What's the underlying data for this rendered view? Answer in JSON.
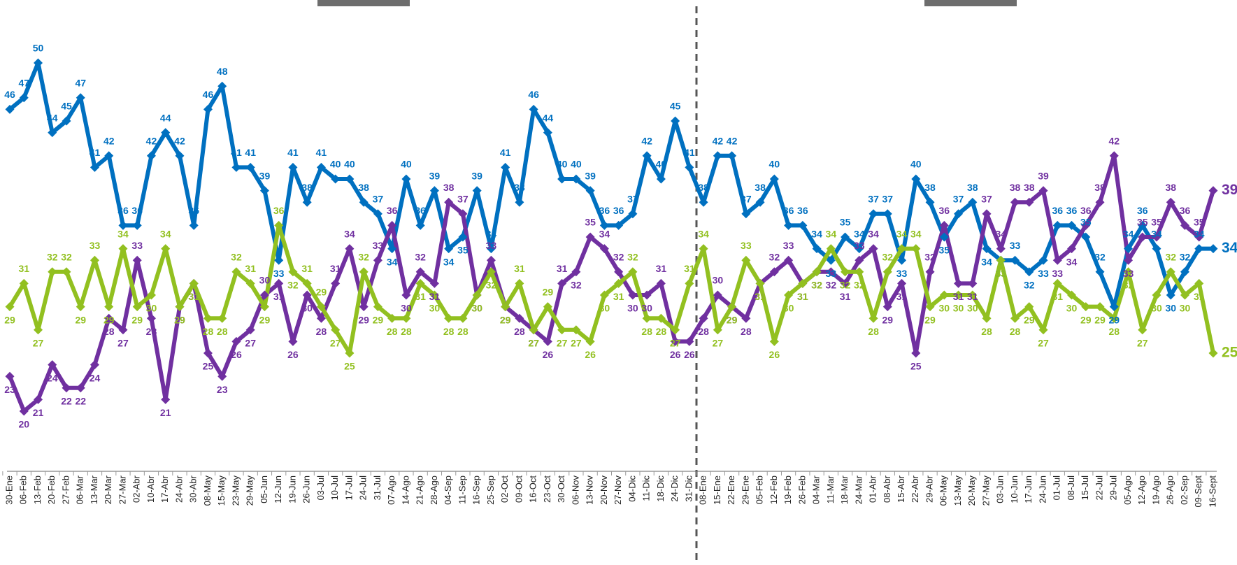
{
  "chart_data": {
    "type": "line",
    "categories": [
      "30-Ene",
      "06-Feb",
      "13-Feb",
      "20-Feb",
      "27-Feb",
      "06-Mar",
      "13-Mar",
      "20-Mar",
      "27-Mar",
      "02-Abr",
      "10-Abr",
      "17-Abr",
      "24-Abr",
      "30-Abr",
      "08-May",
      "15-May",
      "23-May",
      "29-May",
      "05-Jun",
      "12-Jun",
      "19-Jun",
      "26-Jun",
      "03-Jul",
      "10-Jul",
      "17-Jul",
      "24-Jul",
      "31-Jul",
      "07-Ago",
      "14-Ago",
      "21-Ago",
      "28-Ago",
      "04-Sep",
      "11-Sep",
      "16-Sep",
      "25-Sep",
      "02-Oct",
      "09-Oct",
      "16-Oct",
      "23-Oct",
      "30-Oct",
      "06-Nov",
      "13-Nov",
      "20-Nov",
      "27-Nov",
      "04-Dic",
      "11-Dic",
      "18-Dic",
      "24-Dic",
      "31-Dic",
      "08-Ene",
      "15-Ene",
      "22-Ene",
      "29-Ene",
      "05-Feb",
      "12-Feb",
      "19-Feb",
      "26-Feb",
      "04-Mar",
      "11-Mar",
      "18-Mar",
      "24-Mar",
      "01-Abr",
      "08-Abr",
      "15-Abr",
      "22-Abr",
      "29-Abr",
      "06-May",
      "13-May",
      "20-May",
      "27-May",
      "03-Jun",
      "10-Jun",
      "17-Jun",
      "24-Jun",
      "01-Jul",
      "08-Jul",
      "15-Jul",
      "22-Jul",
      "29-Jul",
      "05-Ago",
      "12-Ago",
      "19-Ago",
      "26-Ago",
      "02-Sep",
      "09-Sept",
      "16-Sept"
    ],
    "series": [
      {
        "color": "#0070c0",
        "values": [
          46,
          47,
          50,
          44,
          45,
          47,
          41,
          42,
          36,
          36,
          42,
          44,
          42,
          36,
          46,
          48,
          41,
          41,
          39,
          33,
          41,
          38,
          41,
          40,
          40,
          38,
          37,
          34,
          40,
          36,
          39,
          34,
          35,
          39,
          34,
          41,
          38,
          46,
          44,
          40,
          40,
          39,
          36,
          36,
          37,
          42,
          40,
          45,
          41,
          38,
          42,
          42,
          37,
          38,
          40,
          36,
          36,
          34,
          33,
          35,
          34,
          37,
          37,
          33,
          40,
          38,
          35,
          37,
          38,
          34,
          33,
          33,
          32,
          33,
          36,
          36,
          35,
          32,
          29,
          34,
          36,
          34,
          30,
          32,
          34,
          34
        ]
      },
      {
        "color": "#7030a0",
        "values": [
          23,
          20,
          21,
          24,
          22,
          22,
          24,
          28,
          27,
          33,
          28,
          21,
          29,
          31,
          25,
          23,
          26,
          27,
          30,
          31,
          26,
          30,
          28,
          31,
          34,
          29,
          33,
          36,
          30,
          32,
          31,
          38,
          37,
          30,
          33,
          29,
          28,
          27,
          26,
          31,
          32,
          35,
          34,
          32,
          30,
          30,
          31,
          26,
          26,
          28,
          30,
          29,
          28,
          31,
          32,
          33,
          31,
          32,
          32,
          31,
          33,
          34,
          29,
          31,
          25,
          32,
          36,
          31,
          31,
          37,
          34,
          38,
          38,
          39,
          33,
          34,
          36,
          38,
          42,
          33,
          35,
          35,
          38,
          36,
          35,
          39
        ]
      },
      {
        "color": "#92c020",
        "values": [
          29,
          31,
          27,
          32,
          32,
          29,
          33,
          29,
          34,
          29,
          30,
          34,
          29,
          31,
          28,
          28,
          32,
          31,
          29,
          36,
          32,
          31,
          29,
          27,
          25,
          32,
          29,
          28,
          28,
          31,
          30,
          28,
          28,
          30,
          32,
          29,
          31,
          27,
          29,
          27,
          27,
          26,
          30,
          31,
          32,
          28,
          28,
          27,
          31,
          34,
          27,
          29,
          33,
          31,
          26,
          30,
          31,
          32,
          34,
          32,
          32,
          28,
          32,
          34,
          34,
          29,
          30,
          30,
          30,
          28,
          33,
          28,
          29,
          27,
          31,
          30,
          29,
          29,
          28,
          32,
          27,
          30,
          32,
          30,
          31,
          25
        ]
      }
    ],
    "ylim": [
      18,
      52
    ]
  }
}
